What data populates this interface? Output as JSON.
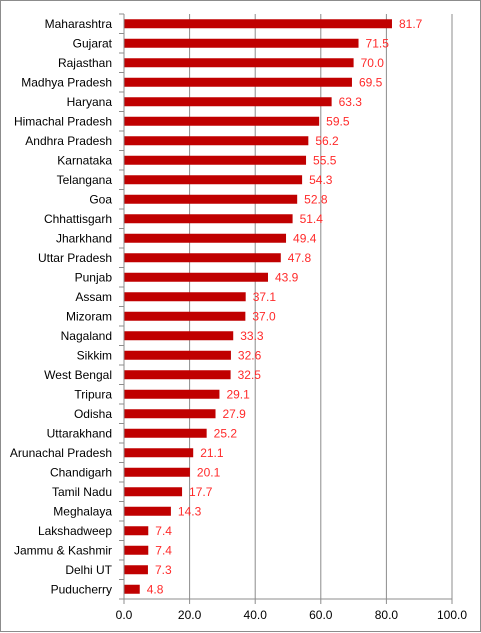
{
  "chart_data": {
    "type": "bar",
    "orientation": "horizontal",
    "categories": [
      "Maharashtra",
      "Gujarat",
      "Rajasthan",
      "Madhya Pradesh",
      "Haryana",
      "Himachal Pradesh",
      "Andhra Pradesh",
      "Karnataka",
      "Telangana",
      "Goa",
      "Chhattisgarh",
      "Jharkhand",
      "Uttar Pradesh",
      "Punjab",
      "Assam",
      "Mizoram",
      "Nagaland",
      "Sikkim",
      "West Bengal",
      "Tripura",
      "Odisha",
      "Uttarakhand",
      "Arunachal Pradesh",
      "Chandigarh",
      "Tamil Nadu",
      "Meghalaya",
      "Lakshadweep",
      "Jammu & Kashmir",
      "Delhi UT",
      "Puducherry"
    ],
    "values": [
      81.7,
      71.5,
      70.0,
      69.5,
      63.3,
      59.5,
      56.2,
      55.5,
      54.3,
      52.8,
      51.4,
      49.4,
      47.8,
      43.9,
      37.1,
      37.0,
      33.3,
      32.6,
      32.5,
      29.1,
      27.9,
      25.2,
      21.1,
      20.1,
      17.7,
      14.3,
      7.4,
      7.4,
      7.3,
      4.8
    ],
    "value_labels": [
      "81.7",
      "71.5",
      "70.0",
      "69.5",
      "63.3",
      "59.5",
      "56.2",
      "55.5",
      "54.3",
      "52.8",
      "51.4",
      "49.4",
      "47.8",
      "43.9",
      "37.1",
      "37.0",
      "33.3",
      "32.6",
      "32.5",
      "29.1",
      "27.9",
      "25.2",
      "21.1",
      "20.1",
      "17.7",
      "14.3",
      "7.4",
      "7.4",
      "7.3",
      "4.8"
    ],
    "xlim": [
      0,
      100
    ],
    "xticks": [
      0,
      20,
      40,
      60,
      80,
      100
    ],
    "xtick_labels": [
      "0.0",
      "20.0",
      "40.0",
      "60.0",
      "80.0",
      "100.0"
    ],
    "title": "",
    "xlabel": "",
    "ylabel": "",
    "grid": {
      "vertical": true,
      "horizontal": false
    },
    "legend": "none",
    "colors": {
      "bar": "#c00000",
      "value_label": "#ff2a2a",
      "gridline": "#8c8c8c",
      "axis": "#8c8c8c",
      "text": "#000000"
    }
  }
}
